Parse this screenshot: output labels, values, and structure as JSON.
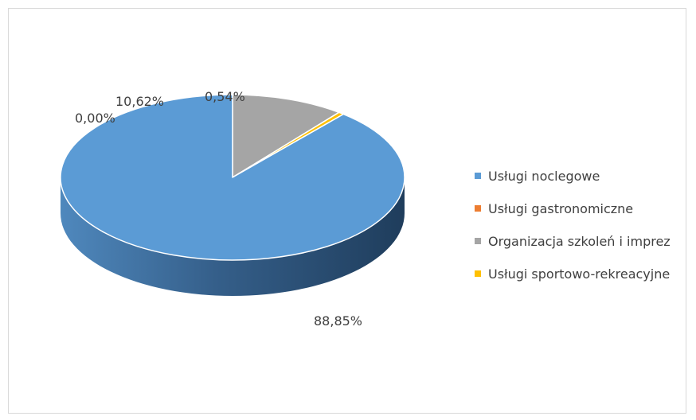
{
  "chart_data": {
    "type": "pie",
    "variant": "3d",
    "categories": [
      "Usługi noclegowe",
      "Usługi gastronomiczne",
      "Organizacja szkoleń i imprez",
      "Usługi sportowo-rekreacyjne"
    ],
    "values": [
      88.85,
      0.0,
      10.62,
      0.54
    ],
    "data_labels": [
      "88,85%",
      "0,00%",
      "10,62%",
      "0,54%"
    ],
    "colors": [
      "#5b9bd5",
      "#ed7d31",
      "#a5a5a5",
      "#ffc000"
    ],
    "legend": {
      "position": "right",
      "items": [
        {
          "label": "Usługi noclegowe",
          "color": "#5b9bd5"
        },
        {
          "label": "Usługi gastronomiczne",
          "color": "#ed7d31"
        },
        {
          "label": "Organizacja szkoleń i imprez",
          "color": "#a5a5a5"
        },
        {
          "label": "Usługi sportowo-rekreacyjne",
          "color": "#ffc000"
        }
      ]
    }
  }
}
